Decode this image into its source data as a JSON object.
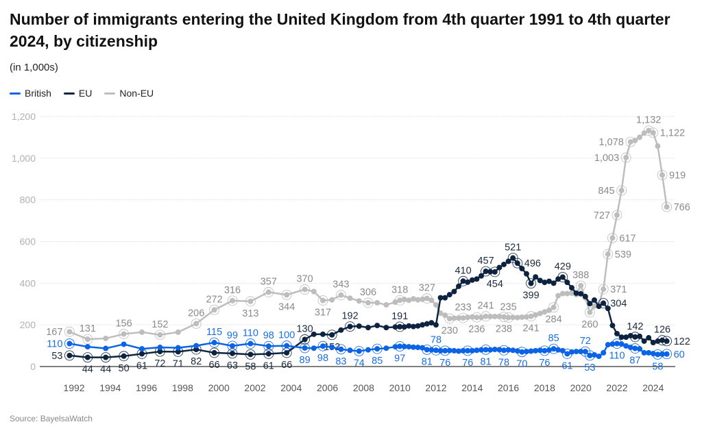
{
  "title": "Number of immigrants entering the United Kingdom from 4th quarter 1991 to 4th quarter 2024, by citizenship",
  "subtitle": "(in 1,000s)",
  "source": "Source: BayelsaWatch",
  "chart_data": {
    "type": "line",
    "title": "Number of immigrants entering the United Kingdom from 4th quarter 1991 to 4th quarter 2024, by citizenship",
    "ylabel": "(in 1,000s)",
    "ylim": [
      0,
      1200
    ],
    "yticks": [
      0,
      200,
      400,
      600,
      800,
      1000,
      1200
    ],
    "ytick_labels": [
      "0",
      "200",
      "400",
      "600",
      "800",
      "1,000",
      "1,200"
    ],
    "xticks": [
      "1992",
      "1994",
      "1996",
      "1998",
      "2000",
      "2002",
      "2004",
      "2006",
      "2008",
      "2010",
      "2012",
      "2014",
      "2016",
      "2018",
      "2020",
      "2022",
      "2024"
    ],
    "grid": true,
    "legend_position": "top-left",
    "x": [
      "Q4 1991",
      "Q4 1992",
      "Q4 1993",
      "Q4 1994",
      "Q4 1995",
      "Q4 1996",
      "Q4 1997",
      "Q4 1998",
      "Q4 1999",
      "Q4 2000",
      "Q4 2001",
      "Q4 2002",
      "Q4 2003",
      "Q4 2004",
      "Q2 2005",
      "Q4 2005",
      "Q2 2006",
      "Q4 2006",
      "Q2 2007",
      "Q4 2007",
      "Q2 2008",
      "Q4 2008",
      "Q2 2009",
      "Q4 2009",
      "Q1 2010",
      "Q2 2010",
      "Q3 2010",
      "Q4 2010",
      "Q1 2011",
      "Q2 2011",
      "Q3 2011",
      "Q4 2011",
      "Q1 2012",
      "Q2 2012",
      "Q3 2012",
      "Q4 2012",
      "Q1 2013",
      "Q2 2013",
      "Q3 2013",
      "Q4 2013",
      "Q1 2014",
      "Q2 2014",
      "Q3 2014",
      "Q4 2014",
      "Q1 2015",
      "Q2 2015",
      "Q3 2015",
      "Q4 2015",
      "Q1 2016",
      "Q2 2016",
      "Q3 2016",
      "Q4 2016",
      "Q1 2017",
      "Q2 2017",
      "Q3 2017",
      "Q4 2017",
      "Q1 2018",
      "Q2 2018",
      "Q3 2018",
      "Q4 2018",
      "Q1 2019",
      "Q2 2019",
      "Q3 2019",
      "Q4 2019",
      "Q1 2020",
      "Q2 2020",
      "Q3 2020",
      "Q4 2020",
      "Q1 2021",
      "Q2 2021",
      "Q3 2021",
      "Q4 2021",
      "Q1 2022",
      "Q2 2022",
      "Q3 2022",
      "Q4 2022",
      "Q1 2023",
      "Q2 2023",
      "Q3 2023",
      "Q4 2023",
      "Q1 2024",
      "Q2 2024",
      "Q3 2024",
      "Q4 2024"
    ],
    "series": [
      {
        "name": "Non-EU",
        "color": "#bdbdbd",
        "label_color": "#8a8a8a",
        "values": [
          167,
          131,
          135,
          156,
          165,
          152,
          165,
          206,
          272,
          316,
          313,
          357,
          344,
          370,
          360,
          317,
          320,
          343,
          328,
          315,
          306,
          306,
          296,
          309,
          318,
          322,
          318,
          325,
          320,
          323,
          327,
          318,
          296,
          256,
          246,
          230,
          232,
          233,
          233,
          236,
          238,
          236,
          236,
          241,
          240,
          240,
          240,
          238,
          235,
          236,
          235,
          237,
          238,
          241,
          248,
          255,
          262,
          270,
          284,
          340,
          350,
          350,
          352,
          345,
          388,
          330,
          260,
          290,
          300,
          371,
          539,
          617,
          727,
          845,
          1003,
          1078,
          1085,
          1100,
          1120,
          1132,
          1122,
          1058,
          919,
          766
        ],
        "labels": [
          [
            0,
            "left"
          ],
          [
            1,
            "above"
          ],
          [
            3,
            "above"
          ],
          [
            5,
            "above"
          ],
          [
            7,
            "above"
          ],
          [
            8,
            "above"
          ],
          [
            9,
            "above"
          ],
          [
            10,
            "below"
          ],
          [
            11,
            "above"
          ],
          [
            12,
            "below"
          ],
          [
            13,
            "above"
          ],
          [
            15,
            "below"
          ],
          [
            17,
            "above"
          ],
          [
            20,
            "above"
          ],
          [
            24,
            "above"
          ],
          [
            30,
            "above"
          ],
          [
            35,
            "below"
          ],
          [
            38,
            "above"
          ],
          [
            41,
            "below"
          ],
          [
            43,
            "above"
          ],
          [
            47,
            "below"
          ],
          [
            48,
            "above"
          ],
          [
            53,
            "below"
          ],
          [
            58,
            "below"
          ],
          [
            64,
            "above"
          ],
          [
            66,
            "below"
          ],
          [
            69,
            "right"
          ],
          [
            70,
            "right"
          ],
          [
            71,
            "right"
          ],
          [
            72,
            "left"
          ],
          [
            73,
            "left"
          ],
          [
            74,
            "left"
          ],
          [
            75,
            "left"
          ],
          [
            79,
            "above"
          ],
          [
            80,
            "right"
          ],
          [
            82,
            "right"
          ],
          [
            83,
            "right"
          ]
        ]
      },
      {
        "name": "EU",
        "color": "#0d2340",
        "label_color": "#1b2a3d",
        "values": [
          53,
          44,
          44,
          50,
          61,
          72,
          71,
          82,
          66,
          63,
          58,
          61,
          66,
          130,
          155,
          155,
          152,
          175,
          192,
          194,
          187,
          197,
          187,
          190,
          191,
          190,
          195,
          192,
          195,
          200,
          205,
          210,
          200,
          330,
          330,
          345,
          360,
          385,
          410,
          405,
          415,
          420,
          435,
          457,
          455,
          454,
          475,
          490,
          505,
          521,
          496,
          470,
          445,
          399,
          430,
          413,
          404,
          409,
          400,
          420,
          429,
          404,
          378,
          352,
          349,
          336,
          302,
          319,
          289,
          304,
          279,
          197,
          158,
          141,
          141,
          148,
          142,
          145,
          122,
          138,
          115,
          122,
          126,
          122
        ],
        "labels": [
          [
            0,
            "left"
          ],
          [
            1,
            "below"
          ],
          [
            2,
            "below"
          ],
          [
            3,
            "below"
          ],
          [
            4,
            "below"
          ],
          [
            5,
            "below"
          ],
          [
            6,
            "below"
          ],
          [
            7,
            "below"
          ],
          [
            8,
            "below"
          ],
          [
            9,
            "below"
          ],
          [
            10,
            "below"
          ],
          [
            11,
            "below"
          ],
          [
            12,
            "below"
          ],
          [
            13,
            "above"
          ],
          [
            16,
            "below"
          ],
          [
            18,
            "above"
          ],
          [
            24,
            "above"
          ],
          [
            38,
            "above"
          ],
          [
            43,
            "above"
          ],
          [
            45,
            "below"
          ],
          [
            49,
            "above"
          ],
          [
            50,
            "right"
          ],
          [
            53,
            "below"
          ],
          [
            60,
            "above"
          ],
          [
            69,
            "right"
          ],
          [
            76,
            "above"
          ],
          [
            82,
            "above"
          ],
          [
            83,
            "right"
          ]
        ]
      },
      {
        "name": "British",
        "color": "#0b63e5",
        "label_color": "#1a6fe0",
        "values": [
          110,
          95,
          87,
          107,
          85,
          92,
          90,
          100,
          115,
          99,
          110,
          98,
          100,
          89,
          88,
          98,
          93,
          83,
          78,
          74,
          80,
          85,
          88,
          95,
          97,
          96,
          95,
          93,
          92,
          90,
          81,
          80,
          78,
          76,
          76,
          77,
          76,
          74,
          76,
          76,
          76,
          78,
          80,
          81,
          80,
          82,
          81,
          78,
          80,
          78,
          75,
          70,
          72,
          74,
          76,
          78,
          76,
          79,
          85,
          80,
          76,
          61,
          70,
          72,
          72,
          72,
          53,
          56,
          49,
          66,
          105,
          108,
          110,
          108,
          99,
          92,
          87,
          85,
          66,
          66,
          62,
          58,
          60,
          60
        ],
        "labels": [
          [
            0,
            "left"
          ],
          [
            8,
            "above"
          ],
          [
            9,
            "above"
          ],
          [
            10,
            "above"
          ],
          [
            11,
            "above"
          ],
          [
            12,
            "above"
          ],
          [
            13,
            "below"
          ],
          [
            15,
            "below"
          ],
          [
            17,
            "below"
          ],
          [
            19,
            "below"
          ],
          [
            21,
            "below"
          ],
          [
            24,
            "below"
          ],
          [
            30,
            "below"
          ],
          [
            32,
            "above"
          ],
          [
            34,
            "below"
          ],
          [
            39,
            "below"
          ],
          [
            43,
            "below"
          ],
          [
            47,
            "below"
          ],
          [
            51,
            "below"
          ],
          [
            56,
            "below"
          ],
          [
            58,
            "above"
          ],
          [
            61,
            "below"
          ],
          [
            65,
            "above"
          ],
          [
            66,
            "below"
          ],
          [
            72,
            "below"
          ],
          [
            76,
            "below"
          ],
          [
            81,
            "below"
          ],
          [
            83,
            "right"
          ]
        ]
      }
    ]
  },
  "legend": {
    "items": [
      "British",
      "EU",
      "Non-EU"
    ],
    "colors": [
      "#0b63e5",
      "#0d2340",
      "#bdbdbd"
    ]
  }
}
